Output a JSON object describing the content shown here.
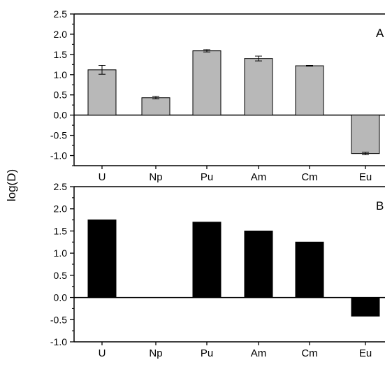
{
  "figure": {
    "ylabel": "log(D)"
  },
  "chart_data": [
    {
      "panel_label": "A",
      "type": "bar",
      "categories": [
        "U",
        "Np",
        "Pu",
        "Am",
        "Cm",
        "Eu"
      ],
      "values": [
        1.12,
        0.43,
        1.59,
        1.4,
        1.22,
        -0.95
      ],
      "errors": [
        0.11,
        0.03,
        0.03,
        0.06,
        0.01,
        0.03
      ],
      "ylim": [
        -1.25,
        2.5
      ],
      "yticks": [
        "-1.0",
        "-0.5",
        "0.0",
        "0.5",
        "1.0",
        "1.5",
        "2.0",
        "2.5"
      ],
      "bar_color": "#b8b8b8",
      "error_bars": true
    },
    {
      "panel_label": "B",
      "type": "bar",
      "categories": [
        "U",
        "Np",
        "Pu",
        "Am",
        "Cm",
        "Eu"
      ],
      "values": [
        1.75,
        null,
        1.7,
        1.5,
        1.25,
        -0.42
      ],
      "ylim": [
        -1.0,
        2.5
      ],
      "yticks": [
        "-1.0",
        "-0.5",
        "0.0",
        "0.5",
        "1.0",
        "1.5",
        "2.0",
        "2.5"
      ],
      "bar_color": "#000000",
      "error_bars": false
    }
  ]
}
